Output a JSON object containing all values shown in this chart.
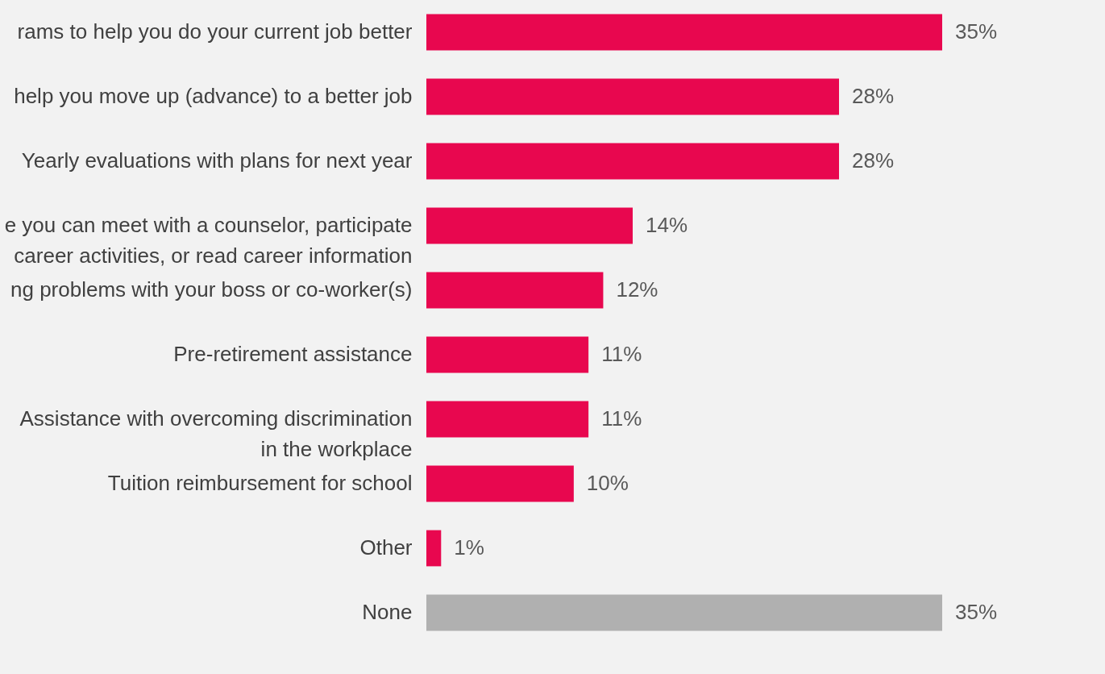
{
  "chart_data": {
    "type": "bar",
    "orientation": "horizontal",
    "categories": [
      "rams to help you do your current job better",
      "help you move up (advance) to a better job",
      "Yearly evaluations with plans for next year",
      "e you can meet with a counselor, participate\ncareer activities, or read career information",
      "ng problems with your boss or co-worker(s)",
      "Pre-retirement assistance",
      "Assistance with overcoming discrimination\nin the workplace",
      "Tuition reimbursement for school",
      "Other",
      "None"
    ],
    "values": [
      35,
      28,
      28,
      14,
      12,
      11,
      11,
      10,
      1,
      35
    ],
    "colors": [
      "#e8074f",
      "#e8074f",
      "#e8074f",
      "#e8074f",
      "#e8074f",
      "#e8074f",
      "#e8074f",
      "#e8074f",
      "#e8074f",
      "#b0b0b0"
    ],
    "value_labels": [
      "35%",
      "28%",
      "28%",
      "14%",
      "12%",
      "11%",
      "11%",
      "10%",
      "1%",
      "35%"
    ]
  }
}
